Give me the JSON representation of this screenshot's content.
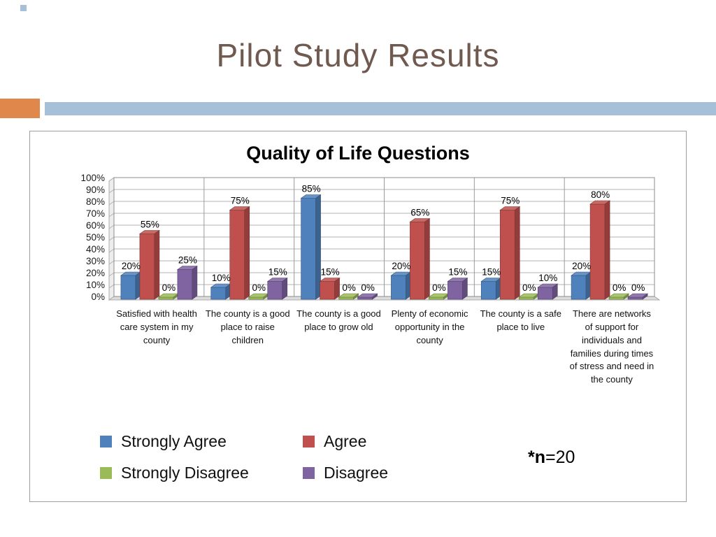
{
  "slide": {
    "title": "Pilot Study Results",
    "note": {
      "bold_part": "*n",
      "rest_part": "=20"
    }
  },
  "decor": {
    "title_color": "#70594f",
    "orange_block_color": "#e0874b",
    "blue_band_color": "#a6c0d8",
    "corner_square_color": "#a6c0d8"
  },
  "chart_data": {
    "type": "bar",
    "style": "3d-clustered-column",
    "title": "Quality of Life Questions",
    "categories": [
      "Satisfied with health care system in my county",
      "The county is a good place to raise children",
      "The county is a good place to grow old",
      "Plenty of economic opportunity in the county",
      "The county is a safe place to live",
      "There are networks of support for individuals and families during times of stress and need in the county"
    ],
    "series": [
      {
        "name": "Strongly Agree",
        "color": "#4f81bd",
        "values": [
          20,
          10,
          85,
          20,
          15,
          20
        ]
      },
      {
        "name": "Agree",
        "color": "#c0504d",
        "values": [
          55,
          75,
          15,
          65,
          75,
          80
        ]
      },
      {
        "name": "Strongly Disagree",
        "color": "#9bbb59",
        "values": [
          0,
          0,
          0,
          0,
          0,
          0
        ]
      },
      {
        "name": "Disagree",
        "color": "#8064a2",
        "values": [
          25,
          15,
          0,
          15,
          10,
          0
        ]
      }
    ],
    "ylim": [
      0,
      100
    ],
    "ytick_step": 10,
    "ytick_labels": [
      "100%",
      "90%",
      "80%",
      "70%",
      "60%",
      "50%",
      "40%",
      "30%",
      "20%",
      "10%",
      "0%"
    ],
    "data_labels": true,
    "data_label_suffix": "%",
    "grid": true,
    "legend_position": "bottom-left"
  }
}
